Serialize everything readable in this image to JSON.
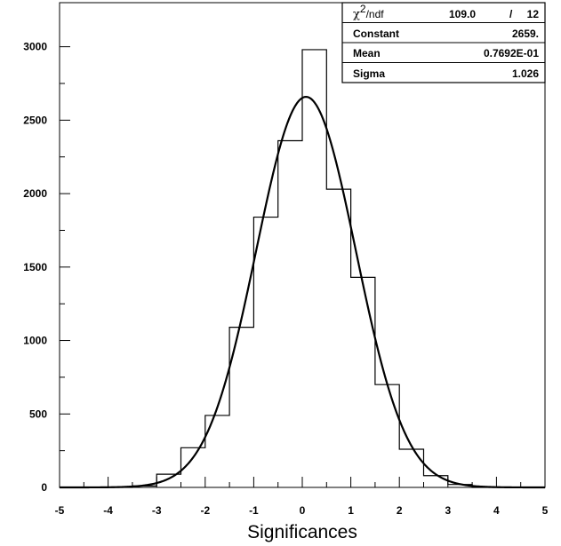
{
  "chart_data": {
    "type": "histogram",
    "title": "",
    "xlabel": "Significances",
    "ylabel": "",
    "xlim": [
      -5,
      5
    ],
    "ylim": [
      0,
      3300
    ],
    "xticks": [
      -5,
      -4,
      -3,
      -2,
      -1,
      0,
      1,
      2,
      3,
      4,
      5
    ],
    "yticks": [
      0,
      500,
      1000,
      1500,
      2000,
      2500,
      3000
    ],
    "bins": {
      "edges": [
        -3.5,
        -3.0,
        -2.5,
        -2.0,
        -1.5,
        -1.0,
        -0.5,
        0.0,
        0.5,
        1.0,
        1.5,
        2.0,
        2.5,
        3.0,
        3.5
      ],
      "counts": [
        10,
        90,
        270,
        490,
        1090,
        1840,
        2360,
        2980,
        2030,
        1430,
        700,
        260,
        80,
        20
      ]
    },
    "fit": {
      "function": "gaussian",
      "constant": 2659,
      "mean": 0.07692,
      "sigma": 1.026
    },
    "stats_box": {
      "chi_symbol": "χ",
      "chi_sup": "2",
      "chi_ndf_label": "/ndf",
      "chi2_value": "109.0",
      "slash": "/",
      "ndf_value": "12",
      "constant_label": "Constant",
      "constant_value": "2659.",
      "mean_label": "Mean",
      "mean_value": "0.7692E-01",
      "sigma_label": "Sigma",
      "sigma_value": "1.026"
    }
  }
}
